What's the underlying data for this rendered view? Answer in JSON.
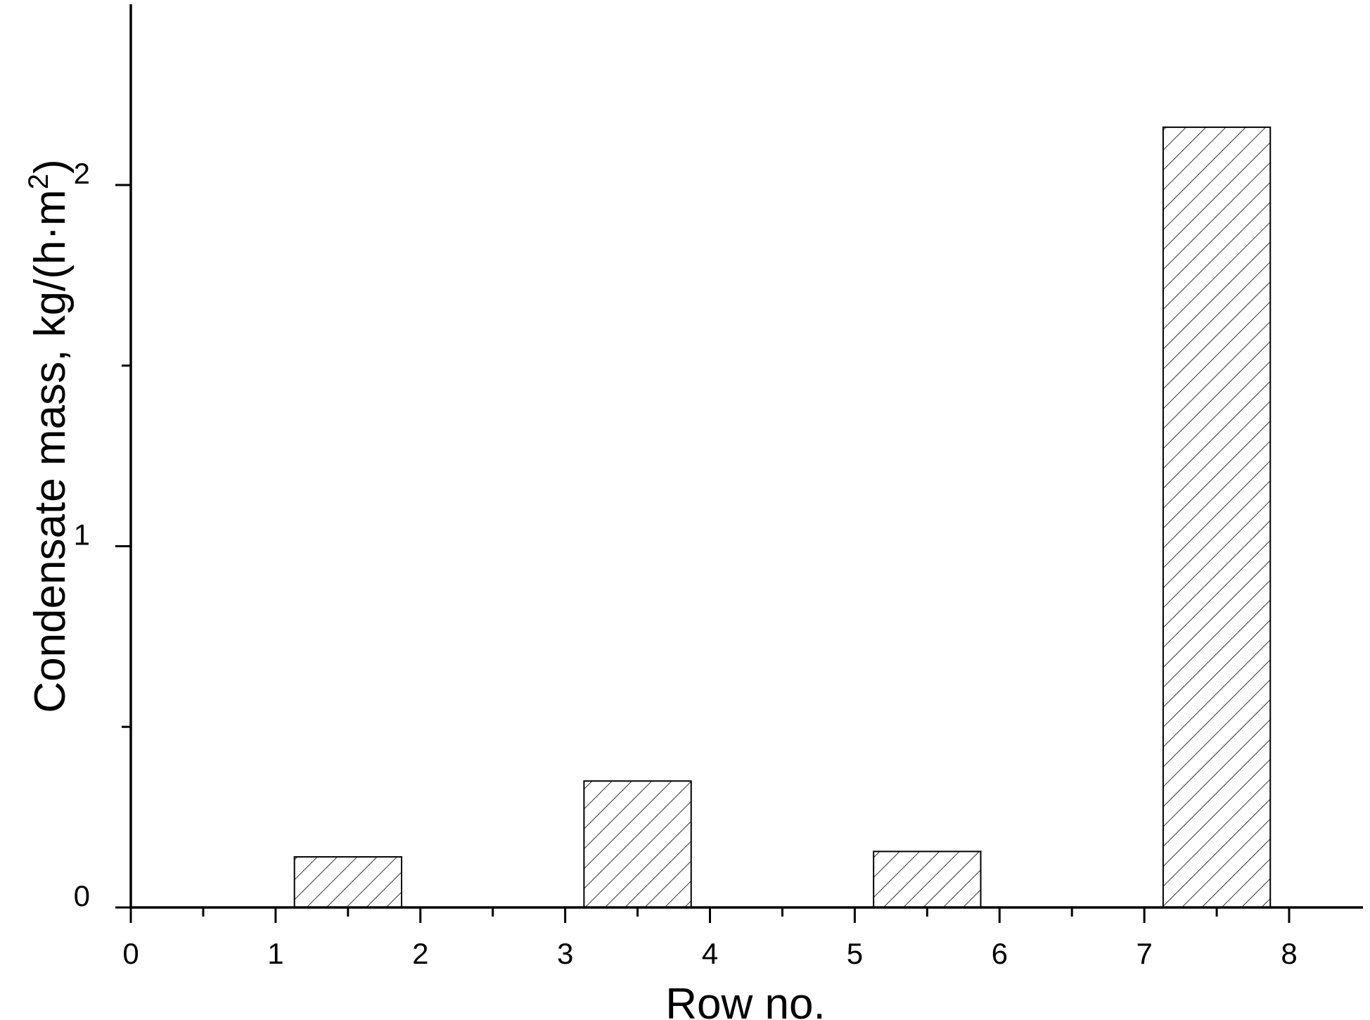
{
  "chart_data": {
    "type": "bar",
    "title": "",
    "xlabel": "Row no.",
    "ylabel_main": "Condensate mass, kg/(h·m",
    "ylabel_sup": "2",
    "ylabel_close": ")",
    "xlim": [
      0,
      8.5
    ],
    "ylim": [
      0,
      2.5
    ],
    "x_ticks": [
      0,
      1,
      2,
      3,
      4,
      5,
      6,
      7,
      8
    ],
    "x_tick_labels": [
      "0",
      "1",
      "2",
      "3",
      "4",
      "5",
      "6",
      "7",
      "8"
    ],
    "x_minor_ticks": [
      0.5,
      1.5,
      2.5,
      3.5,
      4.5,
      5.5,
      6.5,
      7.5
    ],
    "y_ticks": [
      0,
      1,
      2
    ],
    "y_tick_labels": [
      "0",
      "1",
      "2"
    ],
    "y_minor_ticks": [
      0.5,
      1.5
    ],
    "bars": [
      {
        "x_start": 1.13,
        "x_end": 1.87,
        "value": 0.14
      },
      {
        "x_start": 3.13,
        "x_end": 3.87,
        "value": 0.35
      },
      {
        "x_start": 5.13,
        "x_end": 5.87,
        "value": 0.155
      },
      {
        "x_start": 7.13,
        "x_end": 7.87,
        "value": 2.16
      }
    ],
    "bar_fill": "hatched",
    "grid": false,
    "legend": "none"
  }
}
